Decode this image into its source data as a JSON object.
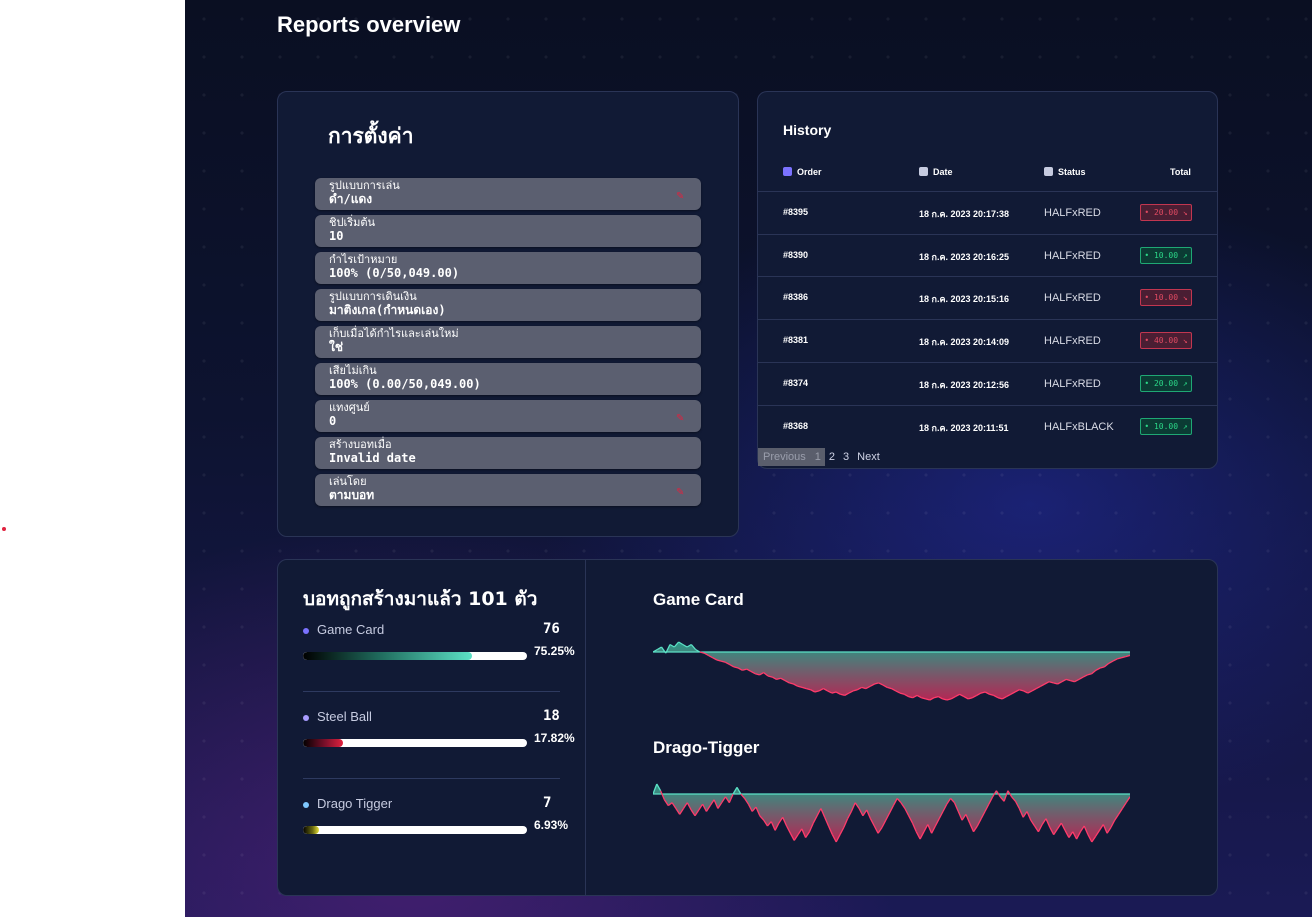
{
  "header": {
    "title": "Reports overview"
  },
  "settings": {
    "title": "การตั้งค่า",
    "rows": [
      {
        "label": "รูปแบบการเล่น",
        "value": "ดำ/แดง",
        "editable": true
      },
      {
        "label": "ชิปเริ่มต้น",
        "value": "10",
        "editable": false
      },
      {
        "label": "กำไรเป้าหมาย",
        "value": "100% (0/50,049.00)",
        "editable": false
      },
      {
        "label": "รูปแบบการเดินเงิน",
        "value": "มาติงเกล(กำหนดเอง)",
        "editable": false
      },
      {
        "label": "เก็บเมื่อได้กำไรและเล่นใหม่",
        "value": "ใช่",
        "editable": false
      },
      {
        "label": "เสียไม่เกิน",
        "value": "100% (0.00/50,049.00)",
        "editable": false
      },
      {
        "label": "แทงศูนย์",
        "value": "0",
        "editable": true
      },
      {
        "label": "สร้างบอทเมื่อ",
        "value": "Invalid date",
        "editable": false
      },
      {
        "label": "เล่นโดย",
        "value": "ตามบอท",
        "editable": true
      }
    ]
  },
  "history": {
    "title": "History",
    "columns": {
      "order": "Order",
      "date": "Date",
      "status": "Status",
      "total": "Total"
    },
    "rows": [
      {
        "order": "#8395",
        "date": "18 ก.ค. 2023 20:17:38",
        "status": "HALFxRED",
        "total": "20.00",
        "result": "loss"
      },
      {
        "order": "#8390",
        "date": "18 ก.ค. 2023 20:16:25",
        "status": "HALFxRED",
        "total": "10.00",
        "result": "win"
      },
      {
        "order": "#8386",
        "date": "18 ก.ค. 2023 20:15:16",
        "status": "HALFxRED",
        "total": "10.00",
        "result": "loss"
      },
      {
        "order": "#8381",
        "date": "18 ก.ค. 2023 20:14:09",
        "status": "HALFxRED",
        "total": "40.00",
        "result": "loss"
      },
      {
        "order": "#8374",
        "date": "18 ก.ค. 2023 20:12:56",
        "status": "HALFxRED",
        "total": "20.00",
        "result": "win"
      },
      {
        "order": "#8368",
        "date": "18 ก.ค. 2023 20:11:51",
        "status": "HALFxBLACK",
        "total": "10.00",
        "result": "win"
      }
    ],
    "pagination": {
      "previous": "Previous",
      "pages": [
        "1",
        "2",
        "3"
      ],
      "active": "1",
      "next": "Next"
    }
  },
  "bots": {
    "title": "บอทถูกสร้างมาแล้ว 101 ตัว",
    "items": [
      {
        "name": "Game Card",
        "count": "76",
        "percent_label": "75.25%",
        "percent": 75.25,
        "dot_color": "#7b72ff"
      },
      {
        "name": "Steel Ball",
        "count": "18",
        "percent_label": "17.82%",
        "percent": 17.82,
        "dot_color": "#a99cff"
      },
      {
        "name": "Drago Tigger",
        "count": "7",
        "percent_label": "6.93%",
        "percent": 6.93,
        "dot_color": "#7fc8ff"
      }
    ]
  },
  "charts": {
    "game_card": {
      "title": "Game Card"
    },
    "drago_tigger": {
      "title": "Drago-Tigger"
    }
  },
  "chart_data": [
    {
      "type": "area",
      "title": "Game Card",
      "values": [
        0,
        0.5,
        1,
        -0.5,
        1.5,
        1,
        2,
        1.5,
        1,
        1.5,
        0.5,
        0,
        -0.5,
        -1.5,
        -2.5,
        -3.5,
        -4,
        -4.5,
        -5.5,
        -6.5,
        -7,
        -8,
        -7.5,
        -8.5,
        -9.5,
        -10,
        -9,
        -10.5,
        -11,
        -12,
        -11.5,
        -12.5,
        -13.5,
        -14,
        -15,
        -15.5,
        -16,
        -16.5,
        -17.5,
        -17,
        -16,
        -17,
        -18,
        -17.5,
        -18.5,
        -19,
        -18,
        -17,
        -16.5,
        -15.5,
        -16,
        -15,
        -14,
        -13.5,
        -14.5,
        -15.5,
        -16,
        -17,
        -18,
        -18.5,
        -19.5,
        -20,
        -19,
        -20,
        -20.5,
        -21,
        -20,
        -19.5,
        -20.5,
        -21,
        -20.5,
        -19.5,
        -18.5,
        -19.5,
        -20.5,
        -20,
        -19,
        -18,
        -17.5,
        -18.5,
        -19,
        -20,
        -20.5,
        -19.5,
        -18.5,
        -17.5,
        -16.5,
        -17,
        -18,
        -17,
        -16,
        -15,
        -14,
        -13,
        -13.5,
        -14,
        -13,
        -12,
        -12.5,
        -13,
        -12,
        -11,
        -10,
        -9.5,
        -8,
        -7,
        -6.5,
        -5,
        -4,
        -3,
        -2.5,
        -2,
        -1.5
      ]
    },
    {
      "type": "area",
      "title": "Drago-Tigger",
      "values": [
        0,
        3,
        1,
        -4,
        -8,
        -6,
        -10,
        -14,
        -10,
        -6,
        -11,
        -15,
        -11,
        -7,
        -12,
        -8,
        -4,
        -10,
        -6,
        -2,
        -6,
        0,
        2,
        0,
        -3,
        -7,
        -12,
        -9,
        -15,
        -18,
        -22,
        -19,
        -25,
        -20,
        -16,
        -22,
        -27,
        -32,
        -28,
        -24,
        -30,
        -26,
        -20,
        -15,
        -10,
        -16,
        -22,
        -28,
        -33,
        -28,
        -23,
        -17,
        -12,
        -6,
        -10,
        -15,
        -11,
        -17,
        -22,
        -27,
        -23,
        -18,
        -13,
        -8,
        -3,
        -6,
        -10,
        -15,
        -20,
        -26,
        -31,
        -26,
        -21,
        -27,
        -22,
        -17,
        -12,
        -7,
        -3,
        -6,
        -12,
        -18,
        -14,
        -20,
        -26,
        -22,
        -17,
        -12,
        -7,
        -2,
        1,
        -2,
        -5,
        1,
        -2,
        -5,
        -10,
        -16,
        -12,
        -18,
        -22,
        -26,
        -21,
        -17,
        -23,
        -28,
        -24,
        -20,
        -25,
        -30,
        -26,
        -31,
        -26,
        -22,
        -28,
        -33,
        -29,
        -25,
        -21,
        -27,
        -23,
        -18,
        -14,
        -10,
        -6,
        -2
      ]
    }
  ],
  "colors": {
    "accent": "#5ce1c6",
    "loss": "#e04a62",
    "win": "#2bd888",
    "edit_icon": "#e0223f"
  }
}
